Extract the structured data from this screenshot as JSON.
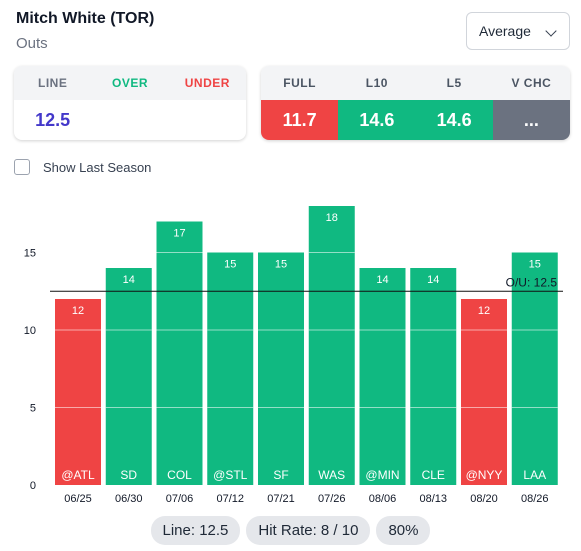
{
  "header": {
    "title": "Mitch White (TOR)",
    "subtitle": "Outs"
  },
  "dropdown": {
    "selected": "Average"
  },
  "line_card": {
    "headers": [
      "LINE",
      "OVER",
      "UNDER"
    ],
    "header_colors": [
      "#6b7280",
      "#10b981",
      "#ef4444"
    ],
    "values": [
      "12.5",
      "",
      ""
    ],
    "value_color": "#4338ca"
  },
  "stats_card": {
    "headers": [
      "FULL",
      "L10",
      "L5",
      "V CHC"
    ],
    "values": [
      "11.7",
      "14.6",
      "14.6",
      "..."
    ],
    "colors": [
      "#ef4444",
      "#10b981",
      "#10b981",
      "#6b7280"
    ]
  },
  "checkbox": {
    "label": "Show Last Season",
    "checked": false
  },
  "chart_data": {
    "type": "bar",
    "categories": [
      "06/25",
      "06/30",
      "07/06",
      "07/12",
      "07/21",
      "07/26",
      "08/06",
      "08/13",
      "08/20",
      "08/26"
    ],
    "opponents": [
      "@ATL",
      "SD",
      "COL",
      "@STL",
      "SF",
      "WAS",
      "@MIN",
      "CLE",
      "@NYY",
      "LAA"
    ],
    "values": [
      12,
      14,
      17,
      15,
      15,
      18,
      14,
      14,
      12,
      15
    ],
    "line": 12.5,
    "line_label": "O/U: 12.5",
    "yticks": [
      0,
      5,
      10,
      15
    ],
    "ylim": [
      0,
      18
    ],
    "colors": {
      "over": "#10b981",
      "under": "#ef4444"
    }
  },
  "footer": {
    "line": "Line: 12.5",
    "hit_rate": "Hit Rate: 8 / 10",
    "percent": "80%"
  }
}
